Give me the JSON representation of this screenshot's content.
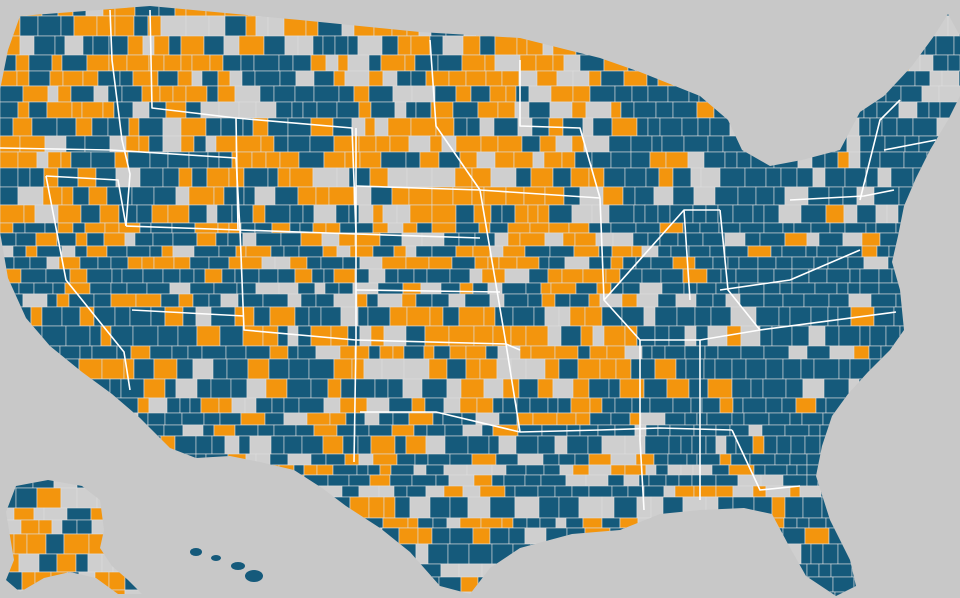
{
  "map": {
    "type": "county-choropleth",
    "region": "United States",
    "colors": {
      "background": "#c8c8c8",
      "category_a": "#155a7b",
      "category_b": "#f3950d",
      "category_none": "#cfcfcf",
      "county_border": "#dcdcdc",
      "state_border": "#ffffff"
    },
    "categories": [
      {
        "key": "category_a",
        "color": "#155a7b"
      },
      {
        "key": "category_b",
        "color": "#f3950d"
      },
      {
        "key": "category_none",
        "color": "#cfcfcf"
      }
    ],
    "insets": [
      "alaska",
      "hawaii"
    ],
    "legend": null,
    "title": null
  }
}
